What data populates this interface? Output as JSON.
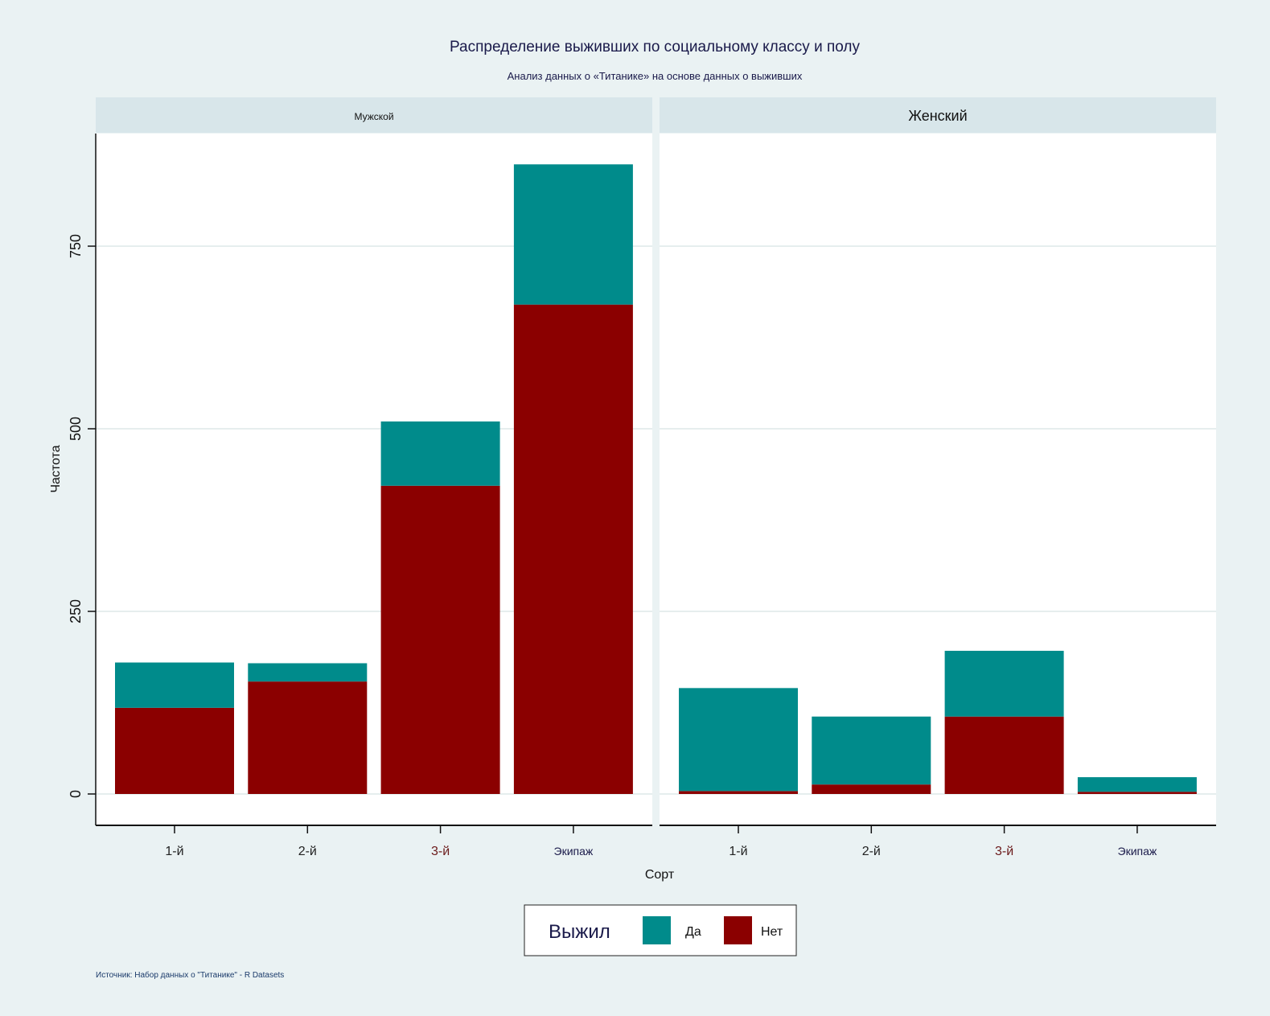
{
  "chart_data": {
    "type": "bar",
    "stacked": true,
    "title": "Распределение выживших по социальному классу и полу",
    "subtitle": "Анализ данных о «Титанике» на основе данных о выживших",
    "xlabel": "Сорт",
    "ylabel": "Частота",
    "ylim": [
      0,
      950
    ],
    "yticks": [
      0,
      250,
      500,
      750
    ],
    "grid": true,
    "categories": [
      "1-й",
      "2-й",
      "3-й",
      "Экипаж"
    ],
    "category_label_colors": [
      "#222222",
      "#222222",
      "#6b1a1a",
      "#1a1a4a"
    ],
    "legend": {
      "title": "Выжил",
      "position": "bottom"
    },
    "series_colors": {
      "Да": "#008b8b",
      "Нет": "#8b0000"
    },
    "panels": [
      {
        "label": "Мужской",
        "series": [
          {
            "name": "Нет",
            "values": [
              118,
              154,
              422,
              670
            ]
          },
          {
            "name": "Да",
            "values": [
              62,
              25,
              88,
              192
            ]
          }
        ]
      },
      {
        "label": "Женский",
        "series": [
          {
            "name": "Нет",
            "values": [
              4,
              13,
              106,
              3
            ]
          },
          {
            "name": "Да",
            "values": [
              141,
              93,
              90,
              20
            ]
          }
        ]
      }
    ],
    "caption": "Источник: Набор данных о \"Титанике\" - R Datasets"
  }
}
